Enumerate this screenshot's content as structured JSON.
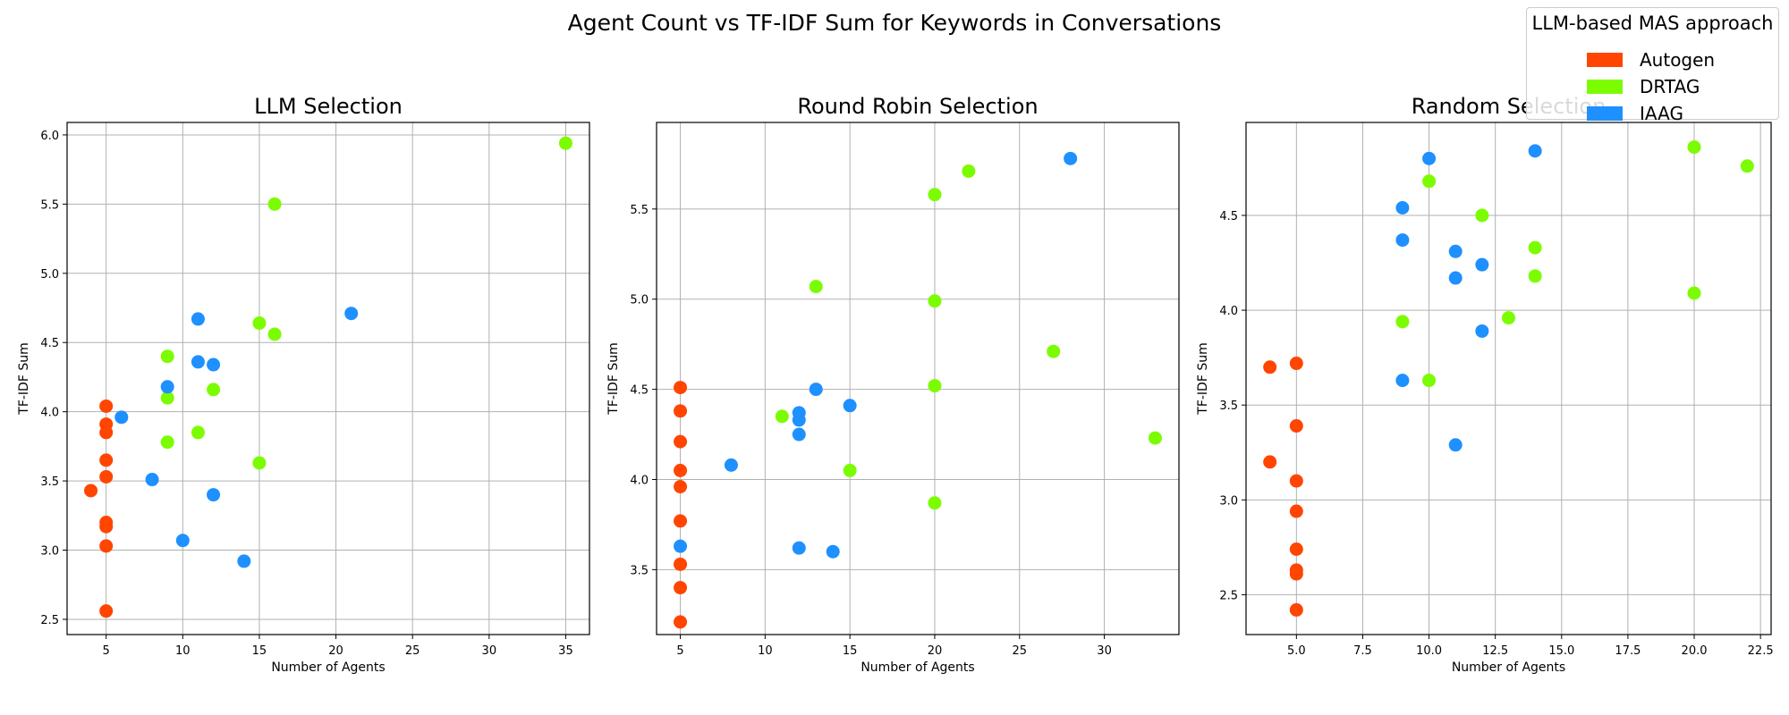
{
  "figure_title": "Agent Count vs TF-IDF Sum for Keywords in Conversations",
  "legend": {
    "title": "LLM-based MAS approach",
    "items": [
      {
        "label": "Autogen",
        "color": "#FF4500"
      },
      {
        "label": "DRTAG",
        "color": "#7CFC00"
      },
      {
        "label": "IAAG",
        "color": "#1E90FF"
      }
    ]
  },
  "chart_data": [
    {
      "type": "scatter",
      "title": "LLM Selection",
      "xlabel": "Number of Agents",
      "ylabel": "TF-IDF Sum",
      "xlim": [
        2.45,
        36.55
      ],
      "ylim": [
        2.39,
        6.09
      ],
      "xticks": [
        5,
        10,
        15,
        20,
        25,
        30,
        35
      ],
      "yticks": [
        2.5,
        3.0,
        3.5,
        4.0,
        4.5,
        5.0,
        5.5,
        6.0
      ],
      "grid": true,
      "series": [
        {
          "name": "Autogen",
          "color": "#FF4500",
          "points": [
            [
              5,
              4.04
            ],
            [
              5,
              3.91
            ],
            [
              5,
              3.85
            ],
            [
              5,
              3.65
            ],
            [
              5,
              3.53
            ],
            [
              4,
              3.43
            ],
            [
              5,
              3.2
            ],
            [
              5,
              3.17
            ],
            [
              5,
              3.03
            ],
            [
              5,
              2.56
            ]
          ]
        },
        {
          "name": "DRTAG",
          "color": "#7CFC00",
          "points": [
            [
              35,
              5.94
            ],
            [
              16,
              5.5
            ],
            [
              15,
              4.64
            ],
            [
              16,
              4.56
            ],
            [
              9,
              4.4
            ],
            [
              12,
              4.16
            ],
            [
              9,
              4.1
            ],
            [
              11,
              3.85
            ],
            [
              9,
              3.78
            ],
            [
              15,
              3.63
            ]
          ]
        },
        {
          "name": "IAAG",
          "color": "#1E90FF",
          "points": [
            [
              21,
              4.71
            ],
            [
              11,
              4.67
            ],
            [
              11,
              4.36
            ],
            [
              12,
              4.34
            ],
            [
              9,
              4.18
            ],
            [
              6,
              3.96
            ],
            [
              8,
              3.51
            ],
            [
              12,
              3.4
            ],
            [
              10,
              3.07
            ],
            [
              14,
              2.92
            ]
          ]
        }
      ]
    },
    {
      "type": "scatter",
      "title": "Round Robin Selection",
      "xlabel": "Number of Agents",
      "ylabel": "TF-IDF Sum",
      "xlim": [
        3.6,
        34.4
      ],
      "ylim": [
        3.14,
        5.98
      ],
      "xticks": [
        5,
        10,
        15,
        20,
        25,
        30
      ],
      "yticks": [
        3.5,
        4.0,
        4.5,
        5.0,
        5.5
      ],
      "grid": true,
      "series": [
        {
          "name": "Autogen",
          "color": "#FF4500",
          "points": [
            [
              5,
              4.51
            ],
            [
              5,
              4.38
            ],
            [
              5,
              4.21
            ],
            [
              5,
              4.05
            ],
            [
              5,
              3.96
            ],
            [
              5,
              3.77
            ],
            [
              5,
              3.53
            ],
            [
              5,
              3.4
            ],
            [
              5,
              3.21
            ]
          ]
        },
        {
          "name": "DRTAG",
          "color": "#7CFC00",
          "points": [
            [
              22,
              5.71
            ],
            [
              20,
              5.58
            ],
            [
              13,
              5.07
            ],
            [
              20,
              4.99
            ],
            [
              27,
              4.71
            ],
            [
              20,
              4.52
            ],
            [
              11,
              4.35
            ],
            [
              33,
              4.23
            ],
            [
              15,
              4.05
            ],
            [
              20,
              3.87
            ]
          ]
        },
        {
          "name": "IAAG",
          "color": "#1E90FF",
          "points": [
            [
              28,
              5.78
            ],
            [
              13,
              4.5
            ],
            [
              15,
              4.41
            ],
            [
              12,
              4.37
            ],
            [
              12,
              4.33
            ],
            [
              12,
              4.25
            ],
            [
              8,
              4.08
            ],
            [
              5,
              3.63
            ],
            [
              12,
              3.62
            ],
            [
              14,
              3.6
            ]
          ]
        }
      ]
    },
    {
      "type": "scatter",
      "title": "Random Selection",
      "xlabel": "Number of Agents",
      "ylabel": "TF-IDF Sum",
      "xlim": [
        3.1,
        22.9
      ],
      "ylim": [
        2.29,
        4.99
      ],
      "xticks": [
        5.0,
        7.5,
        10.0,
        12.5,
        15.0,
        17.5,
        20.0,
        22.5
      ],
      "yticks": [
        2.5,
        3.0,
        3.5,
        4.0,
        4.5
      ],
      "grid": true,
      "series": [
        {
          "name": "Autogen",
          "color": "#FF4500",
          "points": [
            [
              4,
              3.7
            ],
            [
              5,
              3.72
            ],
            [
              5,
              3.39
            ],
            [
              4,
              3.2
            ],
            [
              5,
              3.1
            ],
            [
              5,
              2.94
            ],
            [
              5,
              2.74
            ],
            [
              5,
              2.63
            ],
            [
              5,
              2.61
            ],
            [
              5,
              2.42
            ]
          ]
        },
        {
          "name": "DRTAG",
          "color": "#7CFC00",
          "points": [
            [
              20,
              4.86
            ],
            [
              22,
              4.76
            ],
            [
              10,
              4.68
            ],
            [
              12,
              4.5
            ],
            [
              14,
              4.33
            ],
            [
              14,
              4.18
            ],
            [
              20,
              4.09
            ],
            [
              13,
              3.96
            ],
            [
              9,
              3.94
            ],
            [
              10,
              3.63
            ]
          ]
        },
        {
          "name": "IAAG",
          "color": "#1E90FF",
          "points": [
            [
              14,
              4.84
            ],
            [
              10,
              4.8
            ],
            [
              9,
              4.54
            ],
            [
              9,
              4.37
            ],
            [
              11,
              4.31
            ],
            [
              12,
              4.24
            ],
            [
              11,
              4.17
            ],
            [
              12,
              3.89
            ],
            [
              9,
              3.63
            ],
            [
              11,
              3.29
            ]
          ]
        }
      ]
    }
  ]
}
